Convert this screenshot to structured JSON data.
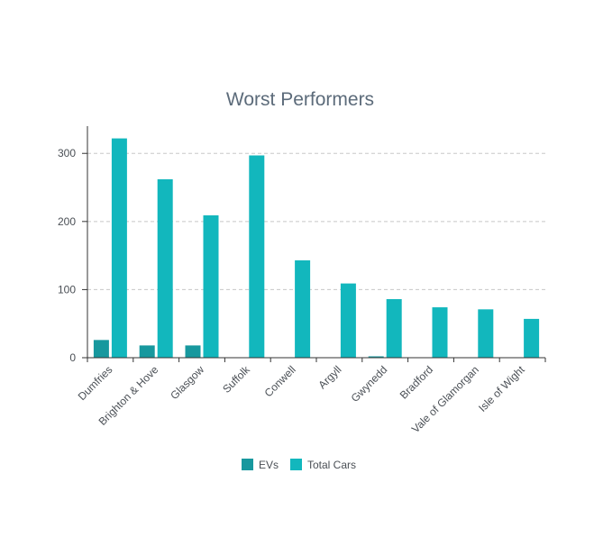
{
  "chart_data": {
    "type": "bar",
    "title": "Worst Performers",
    "xlabel": "",
    "ylabel": "",
    "categories": [
      "Dumfries",
      "Brighton & Hove",
      "Glasgow",
      "Suffolk",
      "Conwell",
      "Argyll",
      "Gwynedd",
      "Bradford",
      "Vale of Glamorgan",
      "Isle of Wight"
    ],
    "series": [
      {
        "name": "EVs",
        "color": "#17989e",
        "values": [
          26,
          18,
          18,
          0,
          0,
          0,
          2,
          0,
          0,
          0
        ]
      },
      {
        "name": "Total Cars",
        "color": "#12b7bd",
        "values": [
          322,
          262,
          209,
          297,
          143,
          109,
          86,
          74,
          71,
          57
        ]
      }
    ],
    "ylim": [
      0,
      340
    ],
    "yticks": [
      0,
      100,
      200,
      300
    ],
    "grid": true,
    "legend_position": "bottom"
  }
}
